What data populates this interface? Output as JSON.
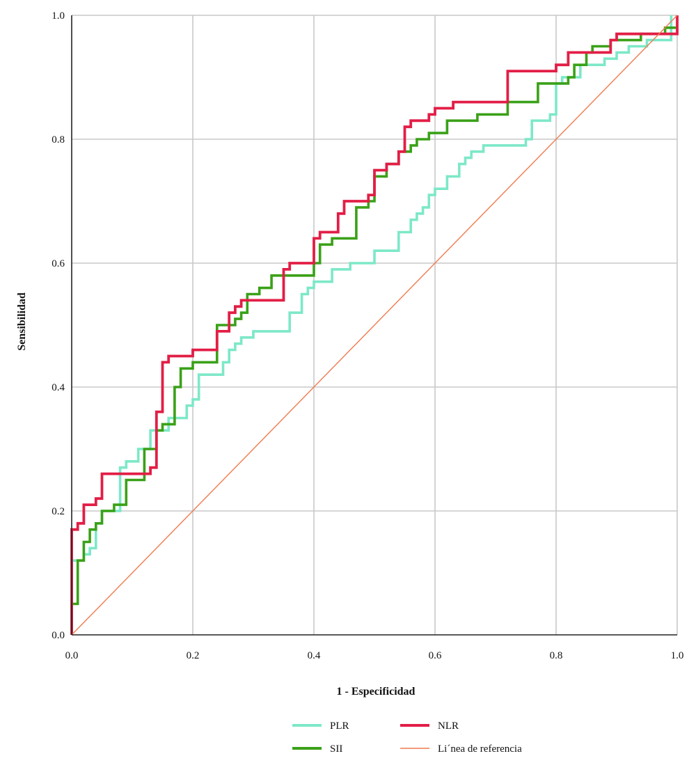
{
  "chart_data": {
    "type": "line",
    "xlabel": "1 - Especificidad",
    "ylabel": "Sensibilidad",
    "xlim": [
      0,
      1
    ],
    "ylim": [
      0,
      1
    ],
    "xticks": [
      "0.0",
      "0.2",
      "0.4",
      "0.6",
      "0.8",
      "1.0"
    ],
    "yticks": [
      "0.0",
      "0.2",
      "0.4",
      "0.6",
      "0.8",
      "1.0"
    ],
    "grid": true,
    "legend_position": "bottom",
    "series": [
      {
        "name": "PLR",
        "color": "#7de8c8",
        "x": [
          0,
          0,
          0.02,
          0.02,
          0.03,
          0.03,
          0.04,
          0.04,
          0.05,
          0.05,
          0.07,
          0.07,
          0.08,
          0.08,
          0.09,
          0.09,
          0.11,
          0.11,
          0.13,
          0.13,
          0.16,
          0.16,
          0.19,
          0.19,
          0.2,
          0.2,
          0.21,
          0.21,
          0.22,
          0.22,
          0.25,
          0.25,
          0.26,
          0.26,
          0.27,
          0.27,
          0.28,
          0.28,
          0.3,
          0.3,
          0.36,
          0.36,
          0.38,
          0.38,
          0.39,
          0.39,
          0.4,
          0.4,
          0.42,
          0.42,
          0.43,
          0.43,
          0.46,
          0.46,
          0.5,
          0.5,
          0.54,
          0.54,
          0.56,
          0.56,
          0.57,
          0.57,
          0.58,
          0.58,
          0.59,
          0.59,
          0.6,
          0.6,
          0.62,
          0.62,
          0.64,
          0.64,
          0.65,
          0.65,
          0.66,
          0.66,
          0.67,
          0.67,
          0.68,
          0.68,
          0.71,
          0.71,
          0.75,
          0.75,
          0.76,
          0.76,
          0.79,
          0.79,
          0.8,
          0.8,
          0.81,
          0.81,
          0.84,
          0.84,
          0.88,
          0.88,
          0.9,
          0.9,
          0.92,
          0.92,
          0.95,
          0.95,
          0.99,
          0.99
        ],
        "y": [
          0,
          0.12,
          0.12,
          0.13,
          0.13,
          0.14,
          0.14,
          0.18,
          0.18,
          0.2,
          0.2,
          0.2,
          0.2,
          0.27,
          0.27,
          0.28,
          0.28,
          0.3,
          0.3,
          0.33,
          0.33,
          0.35,
          0.35,
          0.37,
          0.37,
          0.38,
          0.38,
          0.42,
          0.42,
          0.42,
          0.42,
          0.44,
          0.44,
          0.46,
          0.46,
          0.47,
          0.47,
          0.48,
          0.48,
          0.49,
          0.49,
          0.52,
          0.52,
          0.55,
          0.55,
          0.56,
          0.56,
          0.57,
          0.57,
          0.57,
          0.57,
          0.59,
          0.59,
          0.6,
          0.6,
          0.62,
          0.62,
          0.65,
          0.65,
          0.67,
          0.67,
          0.68,
          0.68,
          0.69,
          0.69,
          0.71,
          0.71,
          0.72,
          0.72,
          0.74,
          0.74,
          0.76,
          0.76,
          0.77,
          0.77,
          0.78,
          0.78,
          0.78,
          0.78,
          0.79,
          0.79,
          0.79,
          0.79,
          0.8,
          0.8,
          0.83,
          0.83,
          0.84,
          0.84,
          0.89,
          0.89,
          0.9,
          0.9,
          0.92,
          0.92,
          0.93,
          0.93,
          0.94,
          0.94,
          0.95,
          0.95,
          0.96,
          0.96,
          1.0
        ]
      },
      {
        "name": "SII",
        "color": "#3aa118",
        "x": [
          0,
          0,
          0.01,
          0.01,
          0.02,
          0.02,
          0.03,
          0.03,
          0.04,
          0.04,
          0.05,
          0.05,
          0.06,
          0.06,
          0.07,
          0.07,
          0.08,
          0.08,
          0.09,
          0.09,
          0.1,
          0.1,
          0.12,
          0.12,
          0.14,
          0.14,
          0.15,
          0.15,
          0.17,
          0.17,
          0.18,
          0.18,
          0.2,
          0.2,
          0.24,
          0.24,
          0.26,
          0.26,
          0.27,
          0.27,
          0.28,
          0.28,
          0.29,
          0.29,
          0.31,
          0.31,
          0.33,
          0.33,
          0.36,
          0.36,
          0.4,
          0.4,
          0.41,
          0.41,
          0.43,
          0.43,
          0.47,
          0.47,
          0.49,
          0.49,
          0.5,
          0.5,
          0.52,
          0.52,
          0.54,
          0.54,
          0.56,
          0.56,
          0.57,
          0.57,
          0.59,
          0.59,
          0.62,
          0.62,
          0.67,
          0.67,
          0.72,
          0.72,
          0.77,
          0.77,
          0.81,
          0.81,
          0.82,
          0.82,
          0.83,
          0.83,
          0.85,
          0.85,
          0.86,
          0.86,
          0.89,
          0.89,
          0.94,
          0.94,
          0.98,
          0.98,
          1.0
        ],
        "y": [
          0,
          0.05,
          0.05,
          0.12,
          0.12,
          0.15,
          0.15,
          0.17,
          0.17,
          0.18,
          0.18,
          0.2,
          0.2,
          0.2,
          0.2,
          0.21,
          0.21,
          0.21,
          0.21,
          0.25,
          0.25,
          0.25,
          0.25,
          0.3,
          0.3,
          0.33,
          0.33,
          0.34,
          0.34,
          0.4,
          0.4,
          0.43,
          0.43,
          0.44,
          0.44,
          0.5,
          0.5,
          0.5,
          0.5,
          0.51,
          0.51,
          0.52,
          0.52,
          0.55,
          0.55,
          0.56,
          0.56,
          0.58,
          0.58,
          0.58,
          0.58,
          0.6,
          0.6,
          0.63,
          0.63,
          0.64,
          0.64,
          0.69,
          0.69,
          0.7,
          0.7,
          0.74,
          0.74,
          0.76,
          0.76,
          0.78,
          0.78,
          0.79,
          0.79,
          0.8,
          0.8,
          0.81,
          0.81,
          0.83,
          0.83,
          0.84,
          0.84,
          0.86,
          0.86,
          0.89,
          0.89,
          0.89,
          0.89,
          0.9,
          0.9,
          0.92,
          0.92,
          0.94,
          0.94,
          0.95,
          0.95,
          0.96,
          0.96,
          0.97,
          0.97,
          0.98,
          0.98
        ]
      },
      {
        "name": "NLR",
        "color": "#e21e46",
        "x": [
          0,
          0,
          0.01,
          0.01,
          0.02,
          0.02,
          0.03,
          0.03,
          0.04,
          0.04,
          0.05,
          0.05,
          0.09,
          0.09,
          0.13,
          0.13,
          0.14,
          0.14,
          0.15,
          0.15,
          0.16,
          0.16,
          0.2,
          0.2,
          0.24,
          0.24,
          0.26,
          0.26,
          0.27,
          0.27,
          0.28,
          0.28,
          0.3,
          0.3,
          0.33,
          0.33,
          0.35,
          0.35,
          0.36,
          0.36,
          0.4,
          0.4,
          0.41,
          0.41,
          0.44,
          0.44,
          0.45,
          0.45,
          0.48,
          0.48,
          0.49,
          0.49,
          0.5,
          0.5,
          0.52,
          0.52,
          0.54,
          0.54,
          0.55,
          0.55,
          0.56,
          0.56,
          0.59,
          0.59,
          0.6,
          0.6,
          0.63,
          0.63,
          0.72,
          0.72,
          0.8,
          0.8,
          0.82,
          0.82,
          0.89,
          0.89,
          0.9,
          0.9,
          0.99,
          0.99,
          1.0,
          1.0
        ],
        "y": [
          0,
          0.17,
          0.17,
          0.18,
          0.18,
          0.21,
          0.21,
          0.21,
          0.21,
          0.22,
          0.22,
          0.26,
          0.26,
          0.26,
          0.26,
          0.27,
          0.27,
          0.36,
          0.36,
          0.44,
          0.44,
          0.45,
          0.45,
          0.46,
          0.46,
          0.49,
          0.49,
          0.52,
          0.52,
          0.53,
          0.53,
          0.54,
          0.54,
          0.54,
          0.54,
          0.54,
          0.54,
          0.59,
          0.59,
          0.6,
          0.6,
          0.64,
          0.64,
          0.65,
          0.65,
          0.68,
          0.68,
          0.7,
          0.7,
          0.7,
          0.7,
          0.71,
          0.71,
          0.75,
          0.75,
          0.76,
          0.76,
          0.78,
          0.78,
          0.82,
          0.82,
          0.83,
          0.83,
          0.84,
          0.84,
          0.85,
          0.85,
          0.86,
          0.86,
          0.91,
          0.91,
          0.92,
          0.92,
          0.94,
          0.94,
          0.96,
          0.96,
          0.97,
          0.97,
          0.97,
          0.97,
          1.0
        ]
      },
      {
        "name": "Li´nea de referencia",
        "color": "#f07a4e",
        "x": [
          0,
          1
        ],
        "y": [
          0,
          1
        ]
      }
    ]
  }
}
